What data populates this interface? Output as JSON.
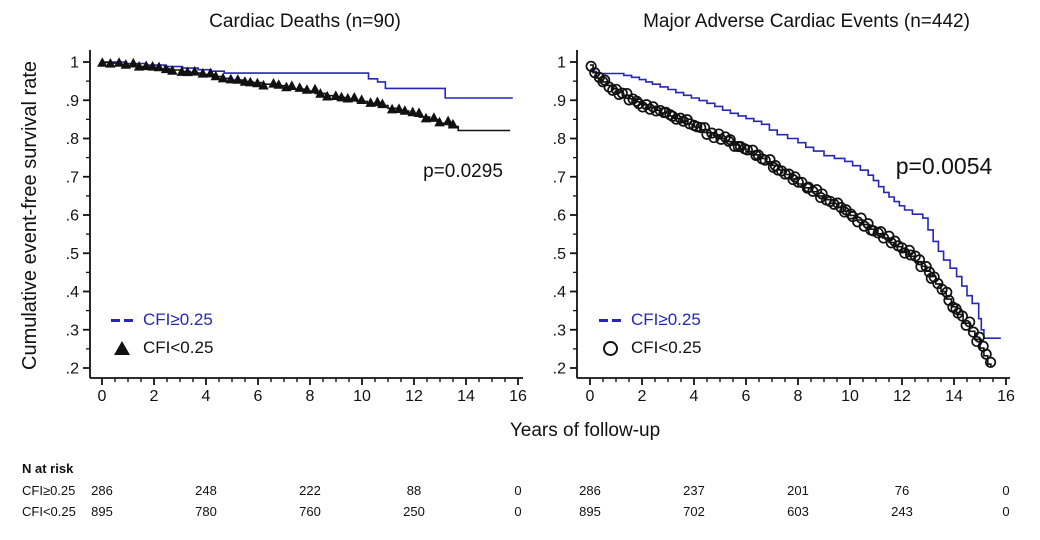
{
  "figure": {
    "xlabel": "Years of follow-up",
    "ylabel": "Cumulative event-free survival rate",
    "accent_blue": "#2626bb",
    "curve_black": "#111111"
  },
  "chart_data": [
    {
      "type": "line",
      "style": "kaplan-meier-step",
      "title": "Cardiac Deaths (n=90)",
      "p_value": "p=0.0295",
      "xlabel": "Years of follow-up",
      "ylabel": "Cumulative event-free survival rate",
      "xlim": [
        0,
        16
      ],
      "ylim": [
        0.2,
        1.0
      ],
      "grid": false,
      "legend_position": "lower-left",
      "x_ticks": [
        0,
        2,
        4,
        6,
        8,
        10,
        12,
        14,
        16
      ],
      "x_minor_step": 0.5,
      "y_ticks": [
        {
          "label": "1",
          "v": 1.0
        },
        {
          "label": ".9",
          "v": 0.9
        },
        {
          "label": ".8",
          "v": 0.8
        },
        {
          "label": ".7",
          "v": 0.7
        },
        {
          "label": ".6",
          "v": 0.6
        },
        {
          "label": ".5",
          "v": 0.5
        },
        {
          "label": ".4",
          "v": 0.4
        },
        {
          "label": ".3",
          "v": 0.3
        },
        {
          "label": ".2",
          "v": 0.2
        }
      ],
      "series": [
        {
          "name": "CFI≥0.25",
          "color": "#2626bb",
          "marker": "none",
          "end_x": 15.8,
          "points": [
            [
              0,
              1.0
            ],
            [
              0.9,
              0.996
            ],
            [
              1.7,
              0.992
            ],
            [
              2.4,
              0.988
            ],
            [
              3.1,
              0.984
            ],
            [
              3.7,
              0.98
            ],
            [
              4.2,
              0.976
            ],
            [
              4.7,
              0.971
            ],
            [
              10.25,
              0.956
            ],
            [
              10.6,
              0.948
            ],
            [
              10.9,
              0.931
            ],
            [
              13.2,
              0.906
            ]
          ]
        },
        {
          "name": "CFI<0.25",
          "color": "#111111",
          "marker": "triangle",
          "marker_until": 13.75,
          "end_x": 15.7,
          "points": [
            [
              0,
              0.999
            ],
            [
              0.3,
              0.997
            ],
            [
              0.7,
              0.994
            ],
            [
              1,
              0.991
            ],
            [
              1.4,
              0.988
            ],
            [
              1.8,
              0.985
            ],
            [
              2.2,
              0.982
            ],
            [
              2.6,
              0.979
            ],
            [
              3,
              0.975
            ],
            [
              3.4,
              0.971
            ],
            [
              3.8,
              0.967
            ],
            [
              4.2,
              0.962
            ],
            [
              4.6,
              0.957
            ],
            [
              5,
              0.953
            ],
            [
              5.4,
              0.949
            ],
            [
              5.8,
              0.946
            ],
            [
              6.2,
              0.942
            ],
            [
              6.6,
              0.938
            ],
            [
              7,
              0.934
            ],
            [
              7.4,
              0.929
            ],
            [
              7.8,
              0.924
            ],
            [
              8.2,
              0.918
            ],
            [
              8.6,
              0.912
            ],
            [
              9,
              0.907
            ],
            [
              9.4,
              0.902
            ],
            [
              9.8,
              0.897
            ],
            [
              10.2,
              0.892
            ],
            [
              10.6,
              0.886
            ],
            [
              11,
              0.879
            ],
            [
              11.4,
              0.872
            ],
            [
              11.8,
              0.864
            ],
            [
              12.2,
              0.856
            ],
            [
              12.6,
              0.849
            ],
            [
              13,
              0.84
            ],
            [
              13.35,
              0.831
            ],
            [
              13.7,
              0.821
            ]
          ]
        }
      ]
    },
    {
      "type": "line",
      "style": "kaplan-meier-step",
      "title": "Major Adverse Cardiac Events (n=442)",
      "p_value": "p=0.0054",
      "xlabel": "Years of follow-up",
      "ylabel": "Cumulative event-free survival rate",
      "xlim": [
        0,
        16
      ],
      "ylim": [
        0.2,
        1.0
      ],
      "grid": false,
      "legend_position": "lower-left",
      "x_ticks": [
        0,
        2,
        4,
        6,
        8,
        10,
        12,
        14,
        16
      ],
      "x_minor_step": 0.5,
      "y_ticks": [
        {
          "label": "1",
          "v": 1.0
        },
        {
          "label": ".9",
          "v": 0.9
        },
        {
          "label": ".8",
          "v": 0.8
        },
        {
          "label": ".7",
          "v": 0.7
        },
        {
          "label": ".6",
          "v": 0.6
        },
        {
          "label": ".5",
          "v": 0.5
        },
        {
          "label": ".4",
          "v": 0.4
        },
        {
          "label": ".3",
          "v": 0.3
        },
        {
          "label": ".2",
          "v": 0.2
        }
      ],
      "series": [
        {
          "name": "CFI≥0.25",
          "color": "#2626bb",
          "marker": "none",
          "end_x": 15.8,
          "points": [
            [
              0,
              0.975
            ],
            [
              0.25,
              0.97
            ],
            [
              1.3,
              0.965
            ],
            [
              1.6,
              0.96
            ],
            [
              1.9,
              0.954
            ],
            [
              2.15,
              0.948
            ],
            [
              2.4,
              0.942
            ],
            [
              2.7,
              0.935
            ],
            [
              3,
              0.928
            ],
            [
              3.3,
              0.92
            ],
            [
              3.6,
              0.913
            ],
            [
              3.9,
              0.906
            ],
            [
              4.2,
              0.899
            ],
            [
              4.5,
              0.892
            ],
            [
              4.8,
              0.884
            ],
            [
              5.1,
              0.874
            ],
            [
              5.4,
              0.866
            ],
            [
              5.7,
              0.859
            ],
            [
              6,
              0.852
            ],
            [
              6.3,
              0.845
            ],
            [
              6.6,
              0.837
            ],
            [
              6.9,
              0.822
            ],
            [
              7.2,
              0.81
            ],
            [
              7.6,
              0.8
            ],
            [
              8,
              0.789
            ],
            [
              8.3,
              0.777
            ],
            [
              8.6,
              0.767
            ],
            [
              9,
              0.755
            ],
            [
              9.4,
              0.748
            ],
            [
              9.8,
              0.74
            ],
            [
              10.1,
              0.729
            ],
            [
              10.4,
              0.717
            ],
            [
              10.7,
              0.704
            ],
            [
              10.9,
              0.69
            ],
            [
              11.1,
              0.674
            ],
            [
              11.3,
              0.659
            ],
            [
              11.5,
              0.647
            ],
            [
              11.7,
              0.635
            ],
            [
              11.9,
              0.624
            ],
            [
              12.1,
              0.613
            ],
            [
              12.4,
              0.602
            ],
            [
              12.8,
              0.592
            ],
            [
              13,
              0.561
            ],
            [
              13.2,
              0.531
            ],
            [
              13.4,
              0.505
            ],
            [
              13.6,
              0.482
            ],
            [
              13.85,
              0.461
            ],
            [
              14.1,
              0.439
            ],
            [
              14.3,
              0.414
            ],
            [
              14.5,
              0.389
            ],
            [
              14.7,
              0.369
            ],
            [
              14.95,
              0.329
            ],
            [
              15.05,
              0.3
            ],
            [
              15.15,
              0.278
            ]
          ]
        },
        {
          "name": "CFI<0.25",
          "color": "#111111",
          "marker": "circle",
          "marker_until": 15.42,
          "end_x": 15.45,
          "points": [
            [
              0,
              0.992
            ],
            [
              0.12,
              0.972
            ],
            [
              0.25,
              0.958
            ],
            [
              0.45,
              0.948
            ],
            [
              0.65,
              0.939
            ],
            [
              0.85,
              0.93
            ],
            [
              1.05,
              0.921
            ],
            [
              1.25,
              0.913
            ],
            [
              1.5,
              0.904
            ],
            [
              1.75,
              0.896
            ],
            [
              2,
              0.888
            ],
            [
              2.25,
              0.881
            ],
            [
              2.5,
              0.874
            ],
            [
              2.75,
              0.867
            ],
            [
              3,
              0.859
            ],
            [
              3.25,
              0.852
            ],
            [
              3.5,
              0.845
            ],
            [
              3.75,
              0.838
            ],
            [
              4,
              0.83
            ],
            [
              4.25,
              0.823
            ],
            [
              4.5,
              0.815
            ],
            [
              4.75,
              0.808
            ],
            [
              5,
              0.8
            ],
            [
              5.25,
              0.792
            ],
            [
              5.5,
              0.783
            ],
            [
              5.75,
              0.774
            ],
            [
              6,
              0.766
            ],
            [
              6.25,
              0.757
            ],
            [
              6.5,
              0.748
            ],
            [
              6.75,
              0.739
            ],
            [
              7,
              0.73
            ],
            [
              7.25,
              0.718
            ],
            [
              7.5,
              0.706
            ],
            [
              7.75,
              0.694
            ],
            [
              8,
              0.681
            ],
            [
              8.25,
              0.671
            ],
            [
              8.5,
              0.661
            ],
            [
              8.75,
              0.65
            ],
            [
              9,
              0.64
            ],
            [
              9.25,
              0.63
            ],
            [
              9.5,
              0.62
            ],
            [
              9.75,
              0.61
            ],
            [
              10,
              0.599
            ],
            [
              10.25,
              0.587
            ],
            [
              10.5,
              0.575
            ],
            [
              10.75,
              0.563
            ],
            [
              11,
              0.551
            ],
            [
              11.25,
              0.54
            ],
            [
              11.5,
              0.528
            ],
            [
              11.75,
              0.517
            ],
            [
              12,
              0.505
            ],
            [
              12.25,
              0.492
            ],
            [
              12.5,
              0.478
            ],
            [
              12.75,
              0.466
            ],
            [
              12.95,
              0.453
            ],
            [
              13.1,
              0.439
            ],
            [
              13.3,
              0.42
            ],
            [
              13.5,
              0.4
            ],
            [
              13.7,
              0.38
            ],
            [
              13.9,
              0.36
            ],
            [
              14.1,
              0.34
            ],
            [
              14.35,
              0.317
            ],
            [
              14.6,
              0.296
            ],
            [
              14.8,
              0.275
            ],
            [
              15,
              0.252
            ],
            [
              15.15,
              0.232
            ],
            [
              15.3,
              0.21
            ],
            [
              15.42,
              0.204
            ]
          ]
        }
      ]
    }
  ],
  "n_at_risk": {
    "header": "N at risk",
    "time_points": [
      0,
      4,
      8,
      12,
      16
    ],
    "rows": [
      {
        "label": "CFI≥0.25",
        "left_panel": [
          "286",
          "248",
          "222",
          "88",
          "0"
        ],
        "right_panel": [
          "286",
          "237",
          "201",
          "76",
          "0"
        ]
      },
      {
        "label": "CFI<0.25",
        "left_panel": [
          "895",
          "780",
          "760",
          "250",
          "0"
        ],
        "right_panel": [
          "895",
          "702",
          "603",
          "243",
          "0"
        ]
      }
    ]
  }
}
